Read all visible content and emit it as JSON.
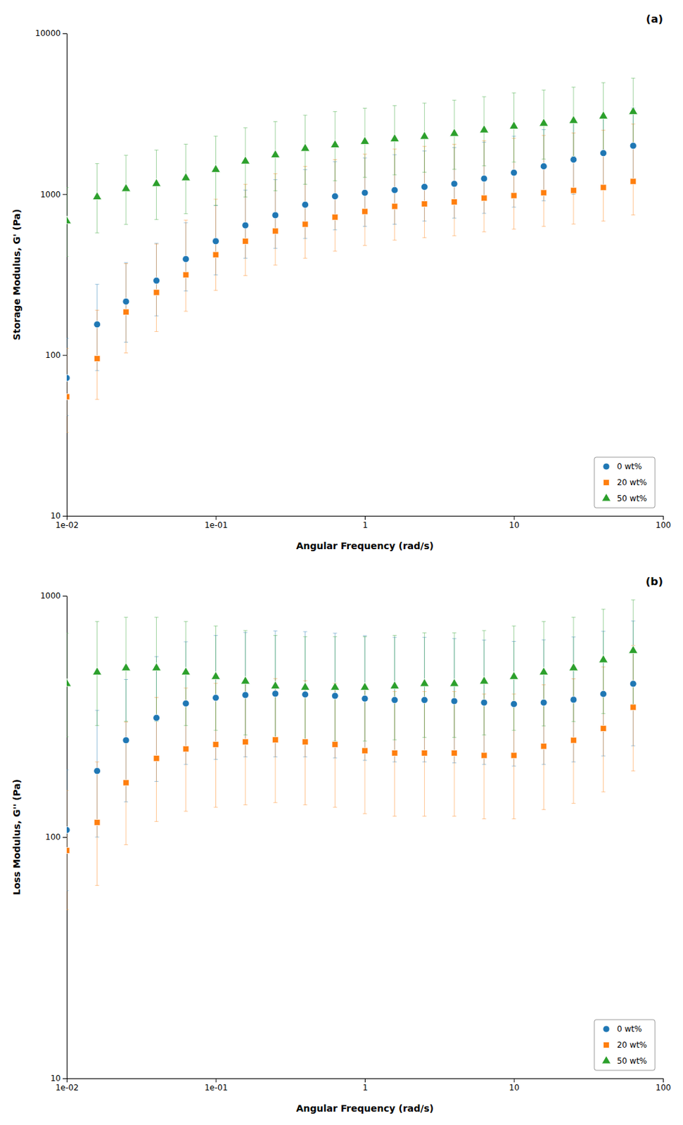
{
  "chart_data": [
    {
      "type": "scatter",
      "title": "(a)",
      "x_label": "Angular Frequency (rad/s)",
      "y_label": "Storage Modulus, G' (Pa)",
      "log": true,
      "grid": false,
      "legend": "lower right",
      "xlim": [
        0.01,
        100
      ],
      "ylim": [
        10,
        10000
      ],
      "xticks": [
        {
          "value": 0.01,
          "label": "1e-02"
        },
        {
          "value": 0.1,
          "label": "1e-01"
        },
        1,
        10,
        100
      ],
      "yticks": [
        10,
        100,
        1000,
        10000
      ],
      "x": [
        0.01,
        0.016,
        0.025,
        0.04,
        0.063,
        0.1,
        0.158,
        0.251,
        0.398,
        0.631,
        1.0,
        1.585,
        2.512,
        3.981,
        6.31,
        10.0,
        15.85,
        25.12,
        39.81,
        63.1
      ],
      "series": [
        {
          "name": "0 wt%",
          "marker": "circle",
          "values": [
            72,
            155,
            215,
            290,
            395,
            510,
            640,
            740,
            860,
            970,
            1020,
            1060,
            1110,
            1160,
            1250,
            1360,
            1490,
            1640,
            1800,
            2000
          ],
          "error_minus": [
            30,
            75,
            95,
            115,
            145,
            195,
            240,
            280,
            330,
            370,
            390,
            410,
            430,
            450,
            490,
            530,
            580,
            640,
            700,
            780
          ],
          "error_plus": [
            55,
            120,
            160,
            205,
            270,
            340,
            420,
            490,
            560,
            620,
            660,
            700,
            745,
            790,
            855,
            935,
            1030,
            1145,
            1270,
            1430
          ]
        },
        {
          "name": "20 wt%",
          "marker": "square",
          "values": [
            55,
            95,
            185,
            245,
            315,
            420,
            510,
            590,
            650,
            720,
            780,
            840,
            870,
            895,
            945,
            980,
            1020,
            1055,
            1100,
            1200
          ],
          "error_minus": [
            22,
            42,
            82,
            105,
            128,
            168,
            198,
            228,
            250,
            278,
            300,
            322,
            334,
            344,
            362,
            374,
            390,
            403,
            420,
            458
          ],
          "error_plus": [
            55,
            95,
            185,
            245,
            375,
            510,
            640,
            750,
            840,
            920,
            995,
            1065,
            1110,
            1145,
            1205,
            1248,
            1300,
            1345,
            1400,
            1530
          ]
        },
        {
          "name": "50 wt%",
          "marker": "triangle",
          "values": [
            680,
            960,
            1080,
            1160,
            1260,
            1420,
            1600,
            1750,
            1920,
            2020,
            2120,
            2200,
            2280,
            2380,
            2500,
            2640,
            2750,
            2860,
            3050,
            3250
          ],
          "error_minus": [
            270,
            385,
            432,
            464,
            504,
            568,
            640,
            700,
            768,
            808,
            848,
            880,
            912,
            952,
            1000,
            1056,
            1100,
            1144,
            1220,
            1300
          ],
          "error_plus": [
            420,
            590,
            665,
            720,
            784,
            875,
            985,
            1075,
            1175,
            1240,
            1300,
            1350,
            1400,
            1460,
            1535,
            1625,
            1690,
            1762,
            1883,
            2015
          ]
        }
      ]
    },
    {
      "type": "scatter",
      "title": "(b)",
      "x_label": "Angular Frequency (rad/s)",
      "y_label": "Loss Modulus, G'' (Pa)",
      "log": true,
      "grid": false,
      "legend": "lower right",
      "xlim": [
        0.01,
        100
      ],
      "ylim": [
        10,
        1000
      ],
      "xticks": [
        {
          "value": 0.01,
          "label": "1e-02"
        },
        {
          "value": 0.1,
          "label": "1e-01"
        },
        1,
        10,
        100
      ],
      "yticks": [
        10,
        100,
        1000
      ],
      "x": [
        0.01,
        0.016,
        0.025,
        0.04,
        0.063,
        0.1,
        0.158,
        0.251,
        0.398,
        0.631,
        1.0,
        1.585,
        2.512,
        3.981,
        6.31,
        10.0,
        15.85,
        25.12,
        39.81,
        63.1
      ],
      "series": [
        {
          "name": "0 wt%",
          "marker": "circle",
          "values": [
            107,
            188,
            252,
            312,
            358,
            378,
            388,
            393,
            390,
            385,
            375,
            370,
            370,
            366,
            361,
            356,
            361,
            371,
            392,
            432
          ],
          "error_minus": [
            47,
            88,
            112,
            142,
            158,
            168,
            173,
            178,
            175,
            172,
            167,
            165,
            165,
            163,
            161,
            159,
            161,
            166,
            175,
            193
          ],
          "error_plus": [
            83,
            147,
            198,
            248,
            287,
            307,
            317,
            322,
            320,
            315,
            308,
            303,
            303,
            299,
            295,
            291,
            296,
            304,
            321,
            354
          ]
        },
        {
          "name": "20 wt%",
          "marker": "square",
          "values": [
            88,
            115,
            168,
            212,
            232,
            242,
            248,
            253,
            248,
            242,
            228,
            223,
            223,
            223,
            218,
            218,
            238,
            252,
            282,
            345
          ],
          "error_minus": [
            38,
            52,
            75,
            96,
            104,
            109,
            112,
            114,
            112,
            109,
            103,
            101,
            101,
            101,
            99,
            99,
            108,
            114,
            128,
            157
          ],
          "error_plus": [
            68,
            90,
            132,
            167,
            183,
            192,
            197,
            201,
            197,
            192,
            182,
            178,
            178,
            178,
            174,
            174,
            190,
            201,
            225,
            277
          ]
        },
        {
          "name": "50 wt%",
          "marker": "triangle",
          "values": [
            432,
            482,
            502,
            502,
            482,
            462,
            442,
            422,
            417,
            417,
            417,
            422,
            432,
            432,
            442,
            462,
            482,
            502,
            542,
            592
          ],
          "error_minus": [
            172,
            192,
            200,
            200,
            192,
            185,
            177,
            169,
            167,
            167,
            167,
            169,
            173,
            173,
            177,
            185,
            193,
            201,
            217,
            237
          ],
          "error_plus": [
            268,
            300,
            313,
            313,
            300,
            288,
            276,
            263,
            260,
            260,
            260,
            263,
            270,
            270,
            276,
            288,
            300,
            313,
            338,
            370
          ]
        }
      ]
    }
  ]
}
